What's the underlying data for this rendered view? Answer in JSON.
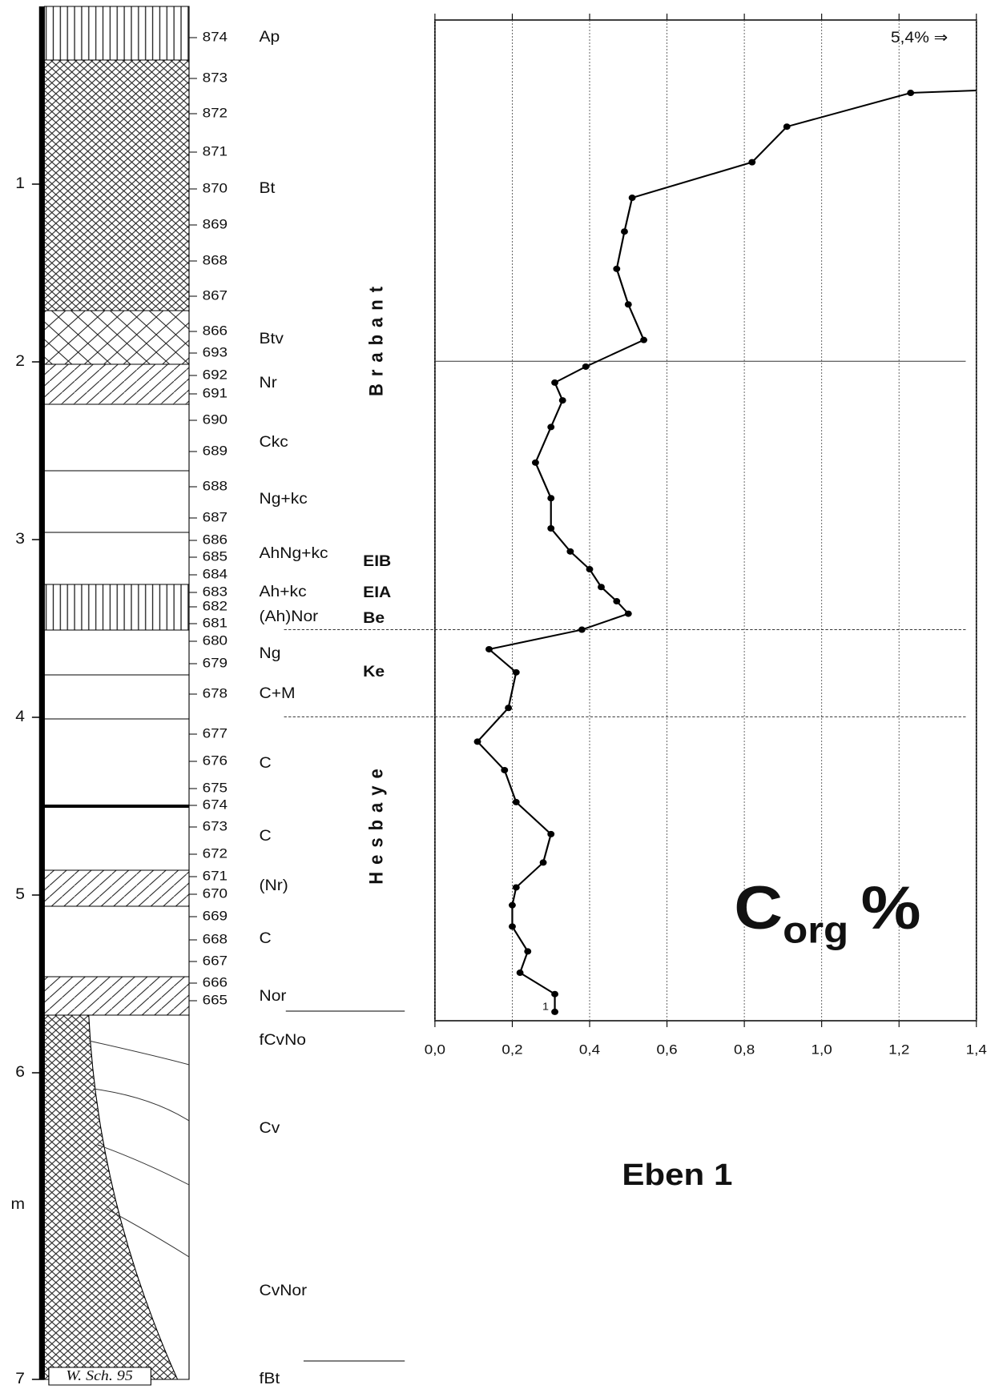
{
  "profile": {
    "depth_ticks": [
      1,
      2,
      3,
      4,
      5,
      6,
      7
    ],
    "depth_unit": "m",
    "samples": [
      "874",
      "873",
      "872",
      "871",
      "870",
      "869",
      "868",
      "867",
      "866",
      "693",
      "692",
      "691",
      "690",
      "689",
      "688",
      "687",
      "686",
      "685",
      "684",
      "683",
      "682",
      "681",
      "680",
      "679",
      "678",
      "677",
      "676",
      "675",
      "674",
      "673",
      "672",
      "671",
      "670",
      "669",
      "668",
      "667",
      "666",
      "665"
    ],
    "horizons": [
      "Ap",
      "Bt",
      "Btv",
      "Nr",
      "Ckc",
      "Ng+kc",
      "AhNg+kc",
      "Ah+kc",
      "(Ah)Nor",
      "Ng",
      "C+M",
      "C",
      "C",
      "(Nr)",
      "C",
      "Nor",
      "fCvNo",
      "Cv",
      "CvNor",
      "fBt"
    ],
    "credit": "W. Sch. 95"
  },
  "chart_data": {
    "type": "line",
    "title": {
      "base": "C",
      "subscript": "org",
      "suffix": "%"
    },
    "caption": "Eben 1",
    "off_scale_label": "5,4% ⇒",
    "point_label": "1",
    "zones": [
      "Brabant",
      "Hesbaye"
    ],
    "sub_units": [
      "EIB",
      "EIA",
      "Be",
      "Ke"
    ],
    "color": "#000000",
    "xlim": [
      0,
      1.4
    ],
    "xticks": [
      {
        "value": 0,
        "label": "0,0"
      },
      {
        "value": 0.2,
        "label": "0,2"
      },
      {
        "value": 0.4,
        "label": "0,4"
      },
      {
        "value": 0.6,
        "label": "0,6"
      },
      {
        "value": 0.8,
        "label": "0,8"
      },
      {
        "value": 1.0,
        "label": "1,0"
      },
      {
        "value": 1.2,
        "label": "1,2"
      },
      {
        "value": 1.4,
        "label": "1,4"
      }
    ],
    "ylim": [
      0.08,
      5.71
    ],
    "grid": true,
    "boundaries": [
      2.0,
      3.51,
      4.0
    ],
    "depths": [
      0.49,
      0.68,
      0.88,
      1.08,
      1.27,
      1.48,
      1.68,
      1.88,
      2.03,
      2.12,
      2.22,
      2.37,
      2.57,
      2.77,
      2.94,
      3.07,
      3.17,
      3.27,
      3.35,
      3.42,
      3.51,
      3.62,
      3.75,
      3.95,
      4.14,
      4.3,
      4.48,
      4.66,
      4.82,
      4.96,
      5.06,
      5.18,
      5.32,
      5.44,
      5.56,
      5.66
    ],
    "values": [
      1.23,
      0.91,
      0.82,
      0.51,
      0.49,
      0.47,
      0.5,
      0.54,
      0.39,
      0.31,
      0.33,
      0.3,
      0.26,
      0.3,
      0.3,
      0.35,
      0.4,
      0.43,
      0.47,
      0.5,
      0.38,
      0.14,
      0.21,
      0.19,
      0.11,
      0.18,
      0.21,
      0.3,
      0.28,
      0.21,
      0.2,
      0.2,
      0.24,
      0.22,
      0.31,
      0.31
    ]
  }
}
